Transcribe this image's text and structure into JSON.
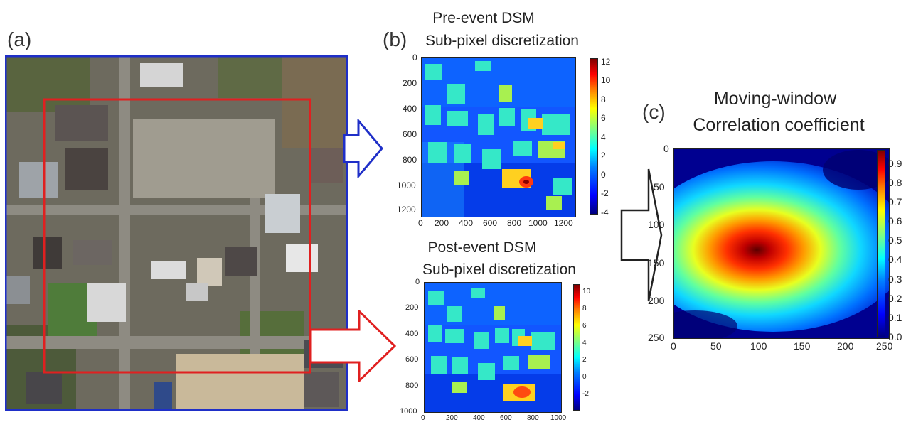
{
  "panel_a": {
    "label": "(a)"
  },
  "panel_b": {
    "label": "(b)",
    "pre_title_1": "Pre-event DSM",
    "pre_title_2": "Sub-pixel discretization",
    "post_title_1": "Post-event DSM",
    "post_title_2": "Sub-pixel discretization"
  },
  "panel_c": {
    "label": "(c)",
    "title_1": "Moving-window",
    "title_2": "Correlation coefficient"
  },
  "chart_data": [
    {
      "type": "heatmap",
      "title": "Pre-event DSM Sub-pixel discretization",
      "x_ticks": [
        "0",
        "200",
        "400",
        "600",
        "800",
        "1000",
        "1200"
      ],
      "y_ticks": [
        "0",
        "200",
        "400",
        "600",
        "800",
        "1000",
        "1200"
      ],
      "colorbar_ticks": [
        "12",
        "10",
        "8",
        "6",
        "4",
        "2",
        "0",
        "-2",
        "-4"
      ],
      "colorbar_range": [
        -4.5,
        12
      ],
      "colormap": "jet"
    },
    {
      "type": "heatmap",
      "title": "Post-event DSM Sub-pixel discretization",
      "x_ticks": [
        "0",
        "200",
        "400",
        "600",
        "800",
        "1000"
      ],
      "y_ticks": [
        "0",
        "200",
        "400",
        "600",
        "800",
        "1000"
      ],
      "colorbar_ticks": [
        "10",
        "8",
        "6",
        "4",
        "2",
        "0",
        "-2"
      ],
      "colorbar_range": [
        -3.5,
        11.5
      ],
      "colormap": "jet"
    },
    {
      "type": "heatmap",
      "title": "Moving-window Correlation coefficient",
      "x_ticks": [
        "0",
        "50",
        "100",
        "150",
        "200",
        "250"
      ],
      "y_ticks": [
        "0",
        "50",
        "100",
        "150",
        "200",
        "250"
      ],
      "colorbar_ticks": [
        "0.9",
        "0.8",
        "0.7",
        "0.6",
        "0.5",
        "0.4",
        "0.3",
        "0.2",
        "0.1",
        "0.0"
      ],
      "colorbar_range": [
        0.0,
        0.96
      ],
      "peak": {
        "x": 115,
        "y": 135,
        "value": 0.95
      },
      "colormap": "jet"
    }
  ]
}
